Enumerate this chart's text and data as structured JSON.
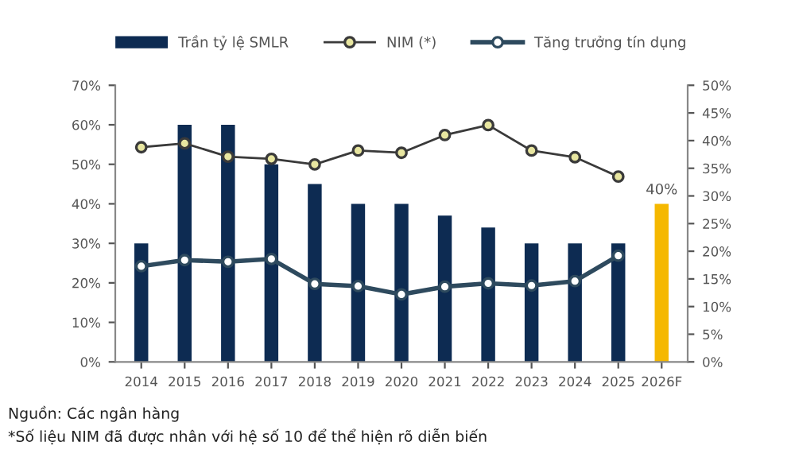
{
  "chart_data": {
    "type": "bar",
    "categories": [
      "2014",
      "2015",
      "2016",
      "2017",
      "2018",
      "2019",
      "2020",
      "2021",
      "2022",
      "2023",
      "2024",
      "2025",
      "2026F"
    ],
    "series": [
      {
        "name": "Trần tỷ lệ SMLR",
        "colors": [
          "#0d2b52",
          "#0d2b52",
          "#0d2b52",
          "#0d2b52",
          "#0d2b52",
          "#0d2b52",
          "#0d2b52",
          "#0d2b52",
          "#0d2b52",
          "#0d2b52",
          "#0d2b52",
          "#0d2b52",
          "#f5b800"
        ],
        "values": [
          30,
          60,
          60,
          50,
          45,
          40,
          40,
          37,
          34,
          30,
          30,
          30,
          40
        ],
        "value_labels": [
          null,
          null,
          null,
          null,
          null,
          null,
          null,
          null,
          null,
          null,
          null,
          null,
          "40%"
        ]
      },
      {
        "name": "NIM (*)",
        "type": "line",
        "axis": "y2",
        "color": "#3a3a3a",
        "marker": "circle",
        "values": [
          38.8,
          39.5,
          37.1,
          36.7,
          35.7,
          38.2,
          37.8,
          41.0,
          42.8,
          38.2,
          37.0,
          33.5,
          null
        ]
      },
      {
        "name": "Tăng trưởng tín dụng",
        "type": "line",
        "axis": "y2",
        "color": "#2e4a5e",
        "marker": "circle",
        "values": [
          17.3,
          18.4,
          18.1,
          18.6,
          14.1,
          13.7,
          12.2,
          13.6,
          14.2,
          13.8,
          14.6,
          19.2,
          null
        ]
      }
    ],
    "ylim": [
      0,
      70
    ],
    "yticks": [
      {
        "value": 0,
        "label": "0%"
      },
      {
        "value": 10,
        "label": "10%"
      },
      {
        "value": 20,
        "label": "20%"
      },
      {
        "value": 30,
        "label": "30%"
      },
      {
        "value": 40,
        "label": "40%"
      },
      {
        "value": 50,
        "label": "50%"
      },
      {
        "value": 60,
        "label": "60%"
      },
      {
        "value": 70,
        "label": "70%"
      }
    ],
    "y2lim": [
      0,
      50
    ],
    "y2ticks": [
      {
        "value": 0,
        "label": "0%"
      },
      {
        "value": 5,
        "label": "5%"
      },
      {
        "value": 10,
        "label": "10%"
      },
      {
        "value": 15,
        "label": "15%"
      },
      {
        "value": 20,
        "label": "20%"
      },
      {
        "value": 25,
        "label": "25%"
      },
      {
        "value": 30,
        "label": "30%"
      },
      {
        "value": 35,
        "label": "35%"
      },
      {
        "value": 40,
        "label": "40%"
      },
      {
        "value": 45,
        "label": "45%"
      },
      {
        "value": 50,
        "label": "50%"
      }
    ],
    "legend": "top",
    "grid": false,
    "annotations": [
      "Nguồn: Các ngân hàng",
      "*Số liệu NIM đã được nhân với hệ số 10 để thể hiện rõ diễn biến"
    ]
  }
}
